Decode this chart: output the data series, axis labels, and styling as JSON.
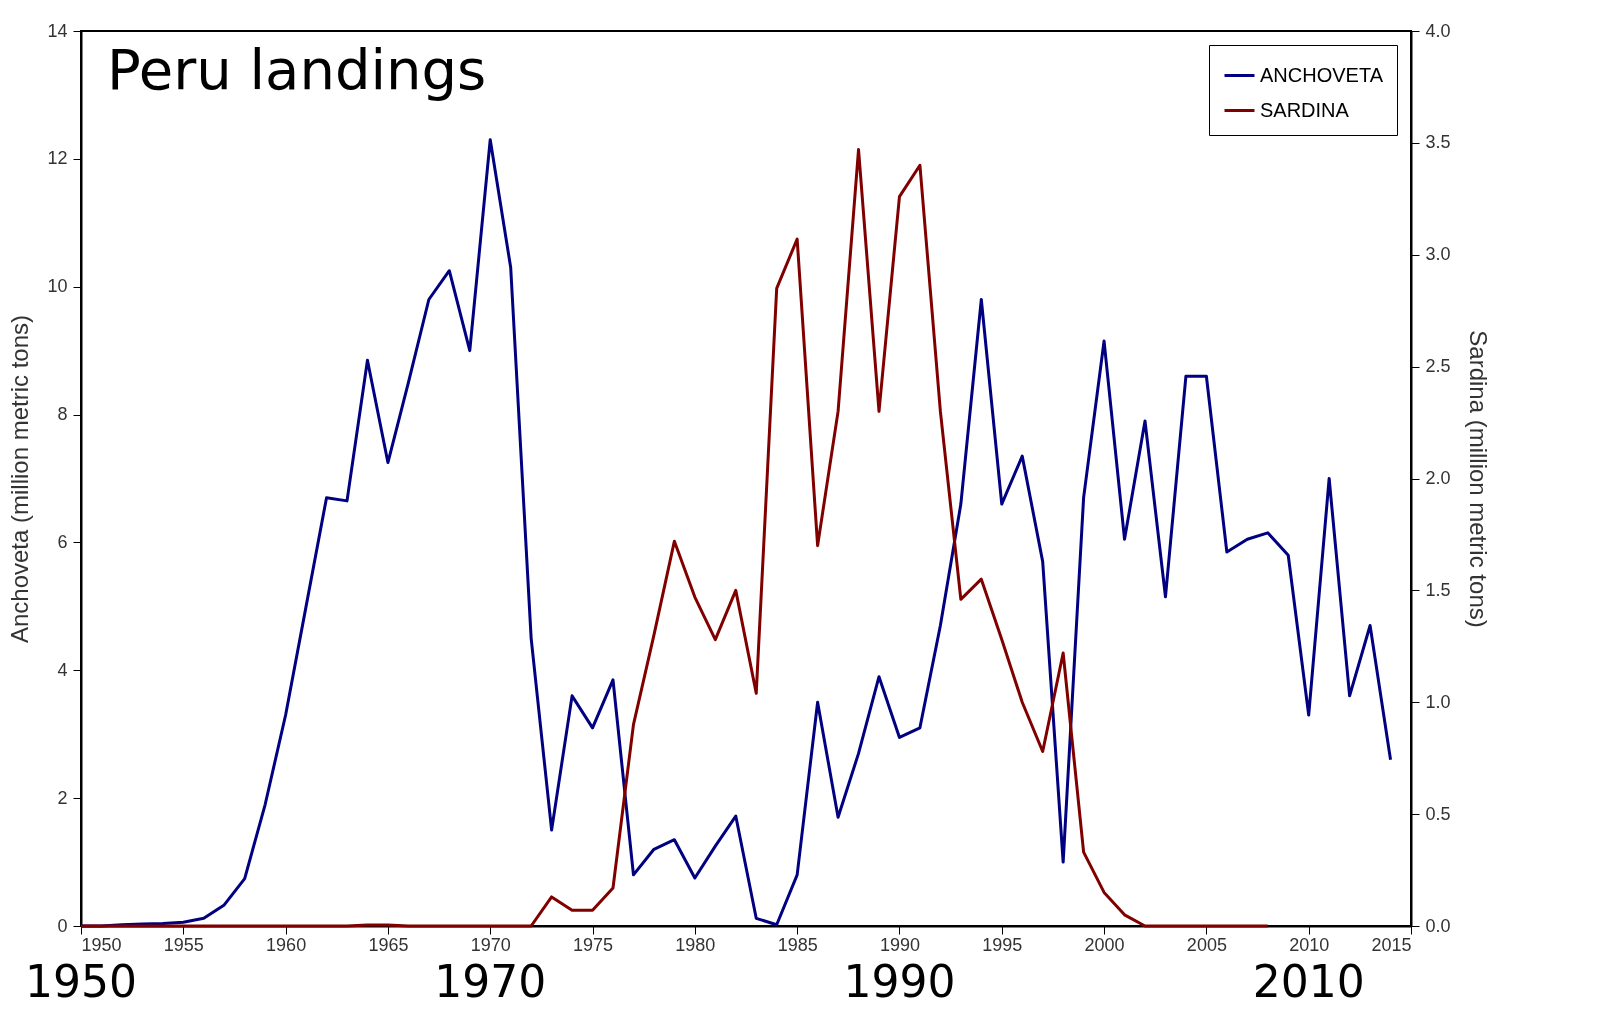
{
  "chart_data": {
    "type": "line",
    "title": "Peru landings",
    "x": [
      1950,
      1951,
      1952,
      1953,
      1954,
      1955,
      1956,
      1957,
      1958,
      1959,
      1960,
      1961,
      1962,
      1963,
      1964,
      1965,
      1966,
      1967,
      1968,
      1969,
      1970,
      1971,
      1972,
      1973,
      1974,
      1975,
      1976,
      1977,
      1978,
      1979,
      1980,
      1981,
      1982,
      1983,
      1984,
      1985,
      1986,
      1987,
      1988,
      1989,
      1990,
      1991,
      1992,
      1993,
      1994,
      1995,
      1996,
      1997,
      1998,
      1999,
      2000,
      2001,
      2002,
      2003,
      2004,
      2005,
      2006,
      2007,
      2008,
      2009,
      2010,
      2011,
      2012,
      2013,
      2014
    ],
    "series": [
      {
        "name": "ANCHOVETA",
        "color": "#000080",
        "values": [
          0,
          0,
          0.02,
          0.03,
          0.04,
          0.06,
          0.12,
          0.33,
          0.74,
          1.9,
          3.3,
          5.0,
          6.7,
          6.65,
          8.85,
          7.25,
          8.5,
          9.8,
          10.25,
          9.0,
          12.3,
          10.3,
          4.5,
          1.5,
          3.6,
          3.1,
          3.85,
          0.8,
          1.2,
          1.35,
          0.75,
          1.25,
          1.72,
          0.12,
          0.02,
          0.8,
          3.5,
          1.7,
          2.7,
          3.9,
          2.95,
          3.1,
          4.7,
          6.6,
          9.8,
          6.6,
          7.35,
          5.7,
          1.0,
          6.7,
          9.15,
          6.05,
          7.9,
          5.15,
          8.6,
          8.6,
          5.85,
          6.05,
          6.15,
          5.8,
          3.3,
          7.0,
          3.6,
          4.7,
          2.6
        ]
      },
      {
        "name": "SARDINA",
        "color": "#800000",
        "axis": "y2",
        "values": [
          0,
          0,
          0,
          0,
          0,
          0,
          0,
          0,
          0,
          0,
          0,
          0,
          0,
          0,
          0.005,
          0.005,
          0,
          0,
          0,
          0,
          0,
          0,
          0,
          0.13,
          0.07,
          0.07,
          0.17,
          0.9,
          1.3,
          1.72,
          1.47,
          1.28,
          1.5,
          1.04,
          2.85,
          3.07,
          1.7,
          2.3,
          3.47,
          2.3,
          3.26,
          3.4,
          2.3,
          1.46,
          1.55,
          1.28,
          1.0,
          0.78,
          1.22,
          0.33,
          0.15,
          0.05,
          0,
          0,
          0,
          0,
          0,
          0,
          0,
          null,
          null,
          null,
          null,
          null,
          null
        ]
      }
    ],
    "ylabel": "Anchoveta (million metric tons)",
    "y2label": "Sardina (million metric tons)",
    "xlim": [
      1950,
      2015
    ],
    "xticks": [
      1950,
      1955,
      1960,
      1965,
      1970,
      1975,
      1980,
      1985,
      1990,
      1995,
      2000,
      2005,
      2010,
      2015
    ],
    "ylim": [
      0,
      14
    ],
    "yticks": [
      0,
      2,
      4,
      6,
      8,
      10,
      12,
      14
    ],
    "y2lim": [
      0,
      4
    ],
    "y2ticks": [
      {
        "value": 0,
        "label": "0.0"
      },
      {
        "value": 0.5,
        "label": "0.5"
      },
      {
        "value": 1,
        "label": "1.0"
      },
      {
        "value": 1.5,
        "label": "1.5"
      },
      {
        "value": 2,
        "label": "2.0"
      },
      {
        "value": 2.5,
        "label": "2.5"
      },
      {
        "value": 3,
        "label": "3.0"
      },
      {
        "value": 3.5,
        "label": "3.5"
      },
      {
        "value": 4,
        "label": "4.0"
      }
    ],
    "annotations": [
      "1950",
      "1970",
      "1990",
      "2010"
    ],
    "grid": false,
    "legend": "top right",
    "marker": "none",
    "line_style": "solid"
  }
}
